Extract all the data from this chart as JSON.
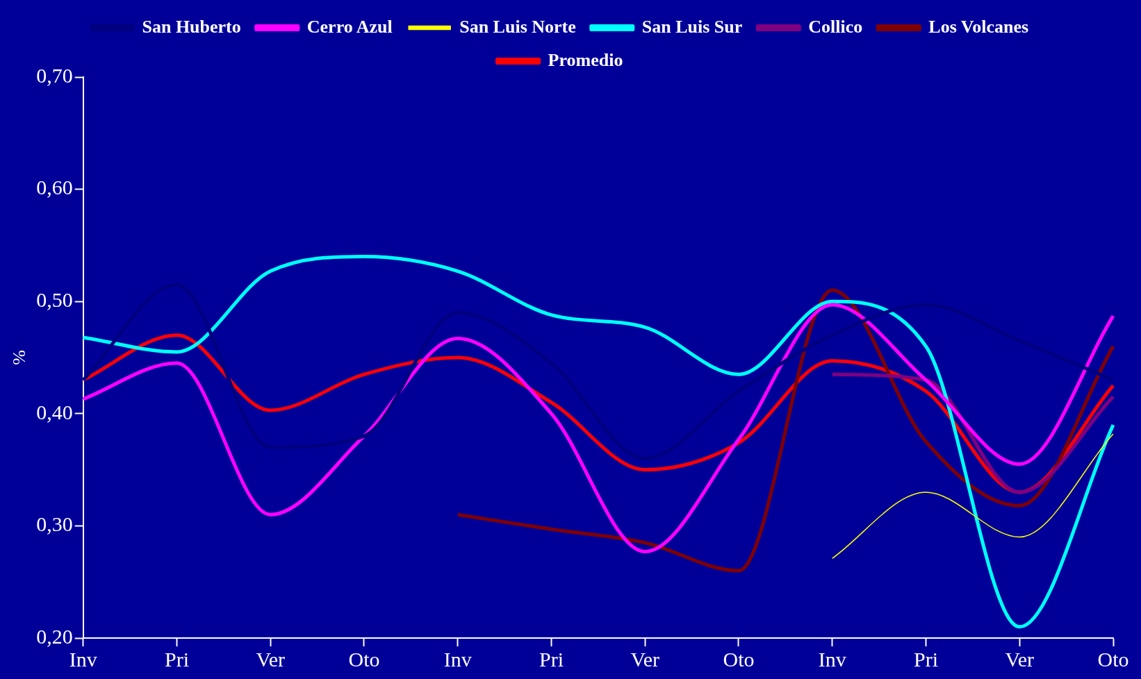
{
  "chart_data": {
    "type": "line",
    "ylabel": "%",
    "categories": [
      "Inv",
      "Pri",
      "Ver",
      "Oto",
      "Inv",
      "Pri",
      "Ver",
      "Oto",
      "Inv",
      "Pri",
      "Ver",
      "Oto"
    ],
    "series": [
      {
        "name": "San Huberto",
        "color": "#000080",
        "values": [
          0.43,
          0.515,
          0.37,
          0.38,
          0.49,
          0.445,
          0.36,
          0.42,
          0.47,
          0.497,
          0.465,
          0.43
        ]
      },
      {
        "name": "Cerro Azul",
        "color": "#ff00ff",
        "values": [
          0.413,
          0.445,
          0.31,
          0.38,
          0.467,
          0.4,
          0.277,
          0.377,
          0.497,
          0.43,
          0.355,
          0.487
        ]
      },
      {
        "name": "San Luis Norte",
        "color": "#ffff00",
        "values": [
          null,
          null,
          null,
          null,
          null,
          null,
          null,
          null,
          0.271,
          0.33,
          0.29,
          0.382
        ]
      },
      {
        "name": "San Luis Sur",
        "color": "#00ffff",
        "values": [
          0.468,
          0.455,
          0.527,
          0.54,
          0.527,
          0.488,
          0.477,
          0.435,
          0.5,
          0.46,
          0.21,
          0.39
        ]
      },
      {
        "name": "Collico",
        "color": "#800080",
        "values": [
          null,
          null,
          null,
          null,
          null,
          null,
          null,
          null,
          0.435,
          0.43,
          0.33,
          0.415
        ]
      },
      {
        "name": "Los Volcanes",
        "color": "#800000",
        "values": [
          null,
          null,
          null,
          null,
          0.31,
          0.297,
          0.285,
          0.26,
          0.51,
          0.375,
          0.318,
          0.46
        ]
      },
      {
        "name": "Promedio",
        "color": "#ff0000",
        "values": [
          0.43,
          0.47,
          0.403,
          0.435,
          0.45,
          0.41,
          0.35,
          0.374,
          0.447,
          0.42,
          0.33,
          0.425
        ]
      }
    ],
    "ylim": [
      0.2,
      0.7
    ],
    "yticks": [
      {
        "value": 0.2,
        "label": "0,20"
      },
      {
        "value": 0.3,
        "label": "0,30"
      },
      {
        "value": 0.4,
        "label": "0,40"
      },
      {
        "value": 0.5,
        "label": "0,50"
      },
      {
        "value": 0.6,
        "label": "0,60"
      },
      {
        "value": 0.7,
        "label": "0,70"
      }
    ],
    "grid": false,
    "legend": "top",
    "marker": "none",
    "line_style": "solid"
  }
}
